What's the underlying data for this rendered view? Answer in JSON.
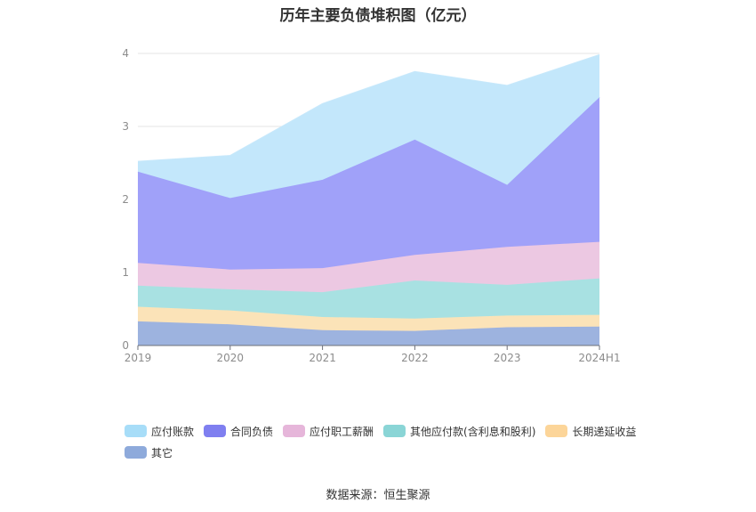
{
  "chart_data": {
    "type": "area",
    "stacked": true,
    "title": "历年主要负债堆积图（亿元）",
    "categories": [
      "2019",
      "2020",
      "2021",
      "2022",
      "2023",
      "2024H1"
    ],
    "ylim": [
      0,
      4
    ],
    "yticks": [
      "0",
      "1",
      "2",
      "3",
      "4"
    ],
    "grid": true,
    "legend_position": "bottom",
    "series": [
      {
        "name": "其它",
        "color": "#9db3df",
        "values": [
          0.33,
          0.29,
          0.21,
          0.2,
          0.25,
          0.26
        ]
      },
      {
        "name": "长期递延收益",
        "color": "#fbe3b8",
        "values": [
          0.2,
          0.19,
          0.18,
          0.17,
          0.16,
          0.16
        ]
      },
      {
        "name": "其他应付款(含利息和股利)",
        "color": "#a8e1e2",
        "values": [
          0.29,
          0.29,
          0.34,
          0.52,
          0.42,
          0.5
        ]
      },
      {
        "name": "应付职工薪酬",
        "color": "#ecc8e2",
        "values": [
          0.31,
          0.27,
          0.33,
          0.35,
          0.52,
          0.5
        ]
      },
      {
        "name": "合同负债",
        "color": "#a0a1f9",
        "values": [
          1.25,
          0.98,
          1.21,
          1.58,
          0.85,
          1.98
        ]
      },
      {
        "name": "应付账款",
        "color": "#c3e7fb",
        "values": [
          0.14,
          0.58,
          1.04,
          0.93,
          1.36,
          0.58
        ]
      }
    ]
  },
  "legend": {
    "items": [
      {
        "label": "应付账款",
        "color": "#a7ddf8"
      },
      {
        "label": "合同负债",
        "color": "#7f7ff0"
      },
      {
        "label": "应付职工薪酬",
        "color": "#e6b6da"
      },
      {
        "label": "其他应付款(含利息和股利)",
        "color": "#8ad5d6"
      },
      {
        "label": "长期递延收益",
        "color": "#fcd599"
      },
      {
        "label": "其它",
        "color": "#8eaadb"
      }
    ]
  },
  "source": "数据来源：恒生聚源"
}
